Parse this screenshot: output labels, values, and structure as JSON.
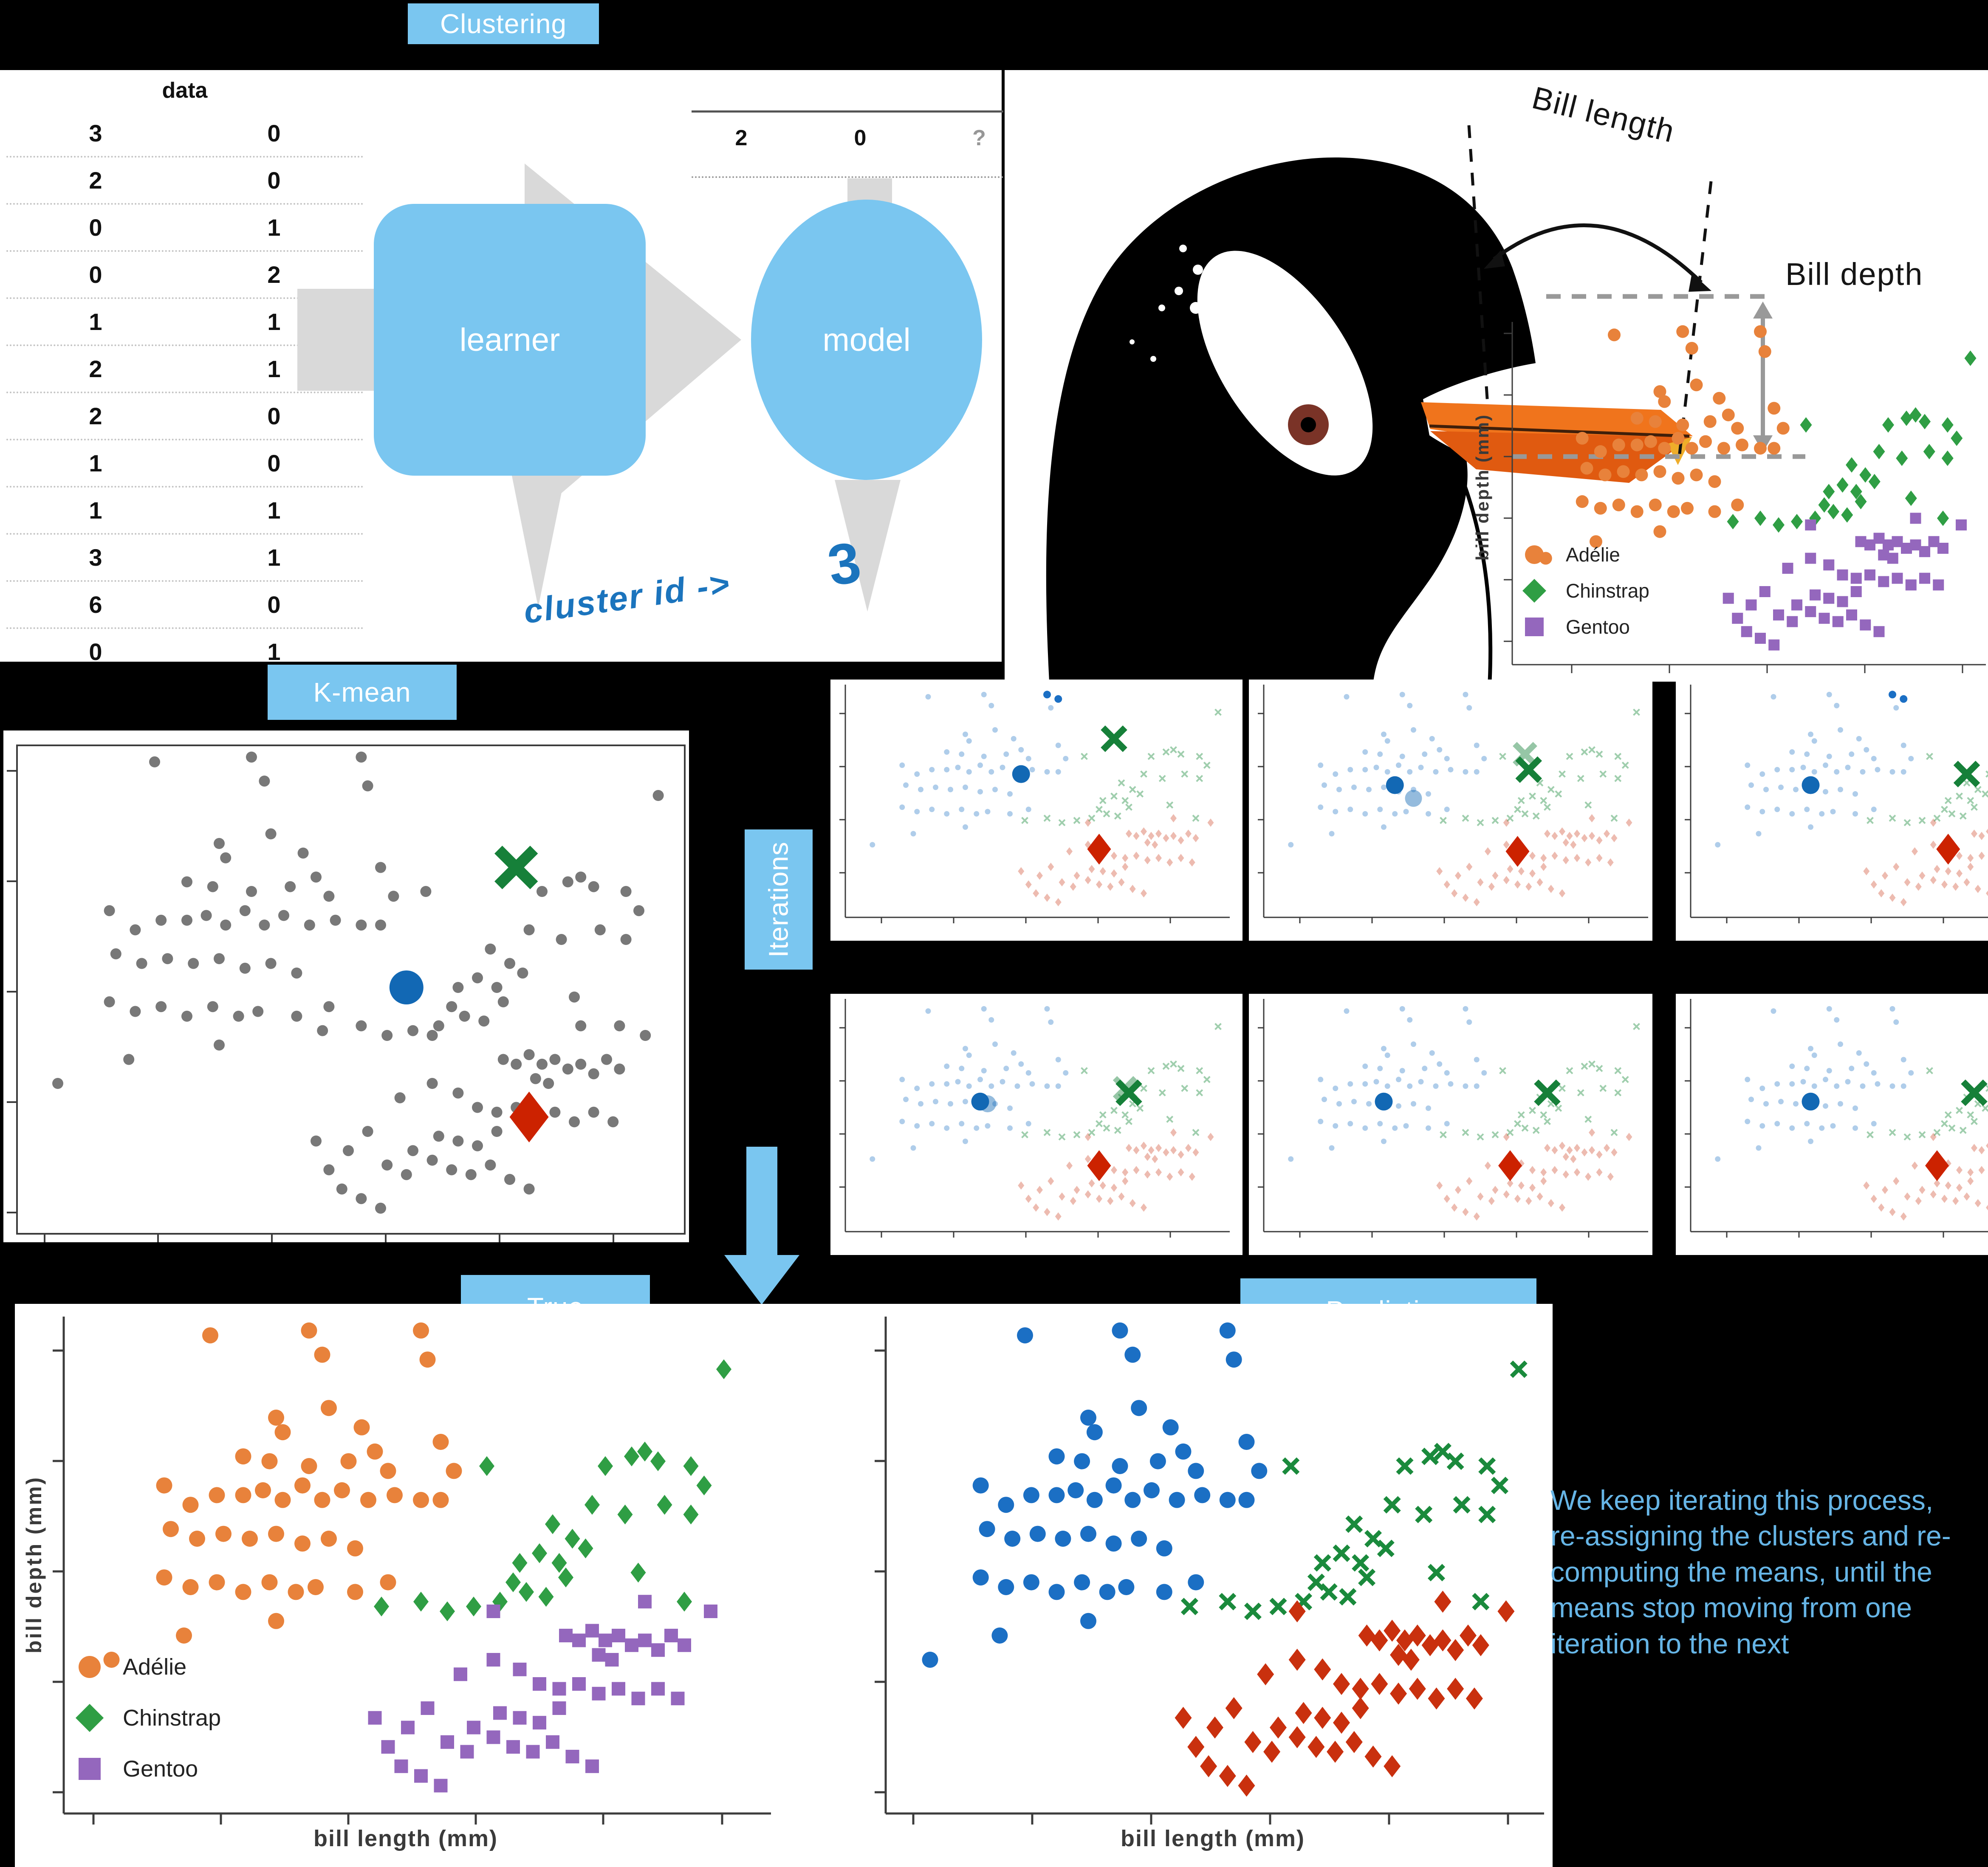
{
  "banners": {
    "clustering": "Clustering",
    "kmean": "K-mean",
    "iterations": "Iterations",
    "true_label": "True",
    "prediction": "Prediction"
  },
  "flow": {
    "table_header": "data",
    "table_rows": [
      [
        "3",
        "0"
      ],
      [
        "2",
        "0"
      ],
      [
        "0",
        "1"
      ],
      [
        "0",
        "2"
      ],
      [
        "1",
        "1"
      ],
      [
        "2",
        "1"
      ],
      [
        "2",
        "0"
      ],
      [
        "1",
        "0"
      ],
      [
        "1",
        "1"
      ],
      [
        "3",
        "1"
      ],
      [
        "6",
        "0"
      ],
      [
        "0",
        "1"
      ]
    ],
    "query_row": [
      "2",
      "0",
      "?"
    ],
    "learner_label": "learner",
    "model_label": "model",
    "annotation_text": "cluster id ->",
    "annotation_value": "3"
  },
  "penguin": {
    "bill_length": "Bill length",
    "bill_depth": "Bill depth"
  },
  "axes": {
    "x_label": "bill length (mm)",
    "y_label": "bill depth (mm)"
  },
  "legend": {
    "items": [
      {
        "label": "Adélie",
        "marker": "orange-circle"
      },
      {
        "label": "Chinstrap",
        "marker": "green-diamond"
      },
      {
        "label": "Gentoo",
        "marker": "purple-square"
      }
    ]
  },
  "note": {
    "text": "We keep iterating this process, re-assigning the clusters and re-computing the means, until the means stop moving from one iteration to the next"
  },
  "colors": {
    "page_bg": "#000000",
    "panel_bg": "#ffffff",
    "banner_blue": "#7ac6f0",
    "node_blue": "#7ac6f0",
    "arrow_gray": "#d9d9d9",
    "handwriting_blue": "#1b74bd",
    "note_blue": "#66b5e6",
    "adelie_orange": "#e8823b",
    "chinstrap_green": "#2f9e44",
    "gentoo_purple": "#9467bd",
    "cluster_blue": "#1b6fc4",
    "cluster_green": "#1a8a3c",
    "cluster_red": "#c9300e",
    "centroid_blue": "#1268b4",
    "centroid_green": "#168039",
    "centroid_red": "#cc2200",
    "gray_point": "#525252",
    "bill_orange": "#f0741c",
    "bill_orange_dark": "#e05a10"
  },
  "chart_data": {
    "type": "scatter",
    "note": "All plots share the same penguin bill dataset; coordinates are normalized 0-100 (x = bill length, y = bill depth) because no numeric tick labels are visible in the source image.",
    "species_points": {
      "adelie": [
        [
          20,
          97
        ],
        [
          35,
          98
        ],
        [
          37,
          93
        ],
        [
          52,
          98
        ],
        [
          53,
          92
        ],
        [
          38,
          82
        ],
        [
          30,
          80
        ],
        [
          31,
          77
        ],
        [
          43,
          78
        ],
        [
          25,
          72
        ],
        [
          29,
          71
        ],
        [
          35,
          70
        ],
        [
          41,
          71
        ],
        [
          45,
          73
        ],
        [
          47,
          69
        ],
        [
          55,
          75
        ],
        [
          57,
          69
        ],
        [
          13,
          66
        ],
        [
          17,
          62
        ],
        [
          21,
          64
        ],
        [
          25,
          64
        ],
        [
          28,
          65
        ],
        [
          31,
          63
        ],
        [
          34,
          66
        ],
        [
          37,
          63
        ],
        [
          40,
          65
        ],
        [
          44,
          63
        ],
        [
          48,
          64
        ],
        [
          52,
          63
        ],
        [
          14,
          57
        ],
        [
          18,
          55
        ],
        [
          22,
          56
        ],
        [
          26,
          55
        ],
        [
          30,
          56
        ],
        [
          34,
          54
        ],
        [
          38,
          55
        ],
        [
          42,
          53
        ],
        [
          13,
          47
        ],
        [
          17,
          45
        ],
        [
          21,
          46
        ],
        [
          25,
          44
        ],
        [
          29,
          46
        ],
        [
          33,
          44
        ],
        [
          42,
          44
        ],
        [
          47,
          46
        ],
        [
          36,
          45
        ],
        [
          55,
          63
        ],
        [
          5,
          30
        ],
        [
          16,
          35
        ],
        [
          30,
          38
        ]
      ],
      "chinstrap": [
        [
          98,
          90
        ],
        [
          62,
          70
        ],
        [
          80,
          70
        ],
        [
          84,
          72
        ],
        [
          86,
          73
        ],
        [
          88,
          71
        ],
        [
          93,
          70
        ],
        [
          95,
          66
        ],
        [
          78,
          62
        ],
        [
          83,
          60
        ],
        [
          89,
          62
        ],
        [
          93,
          60
        ],
        [
          72,
          58
        ],
        [
          75,
          55
        ],
        [
          77,
          53
        ],
        [
          70,
          52
        ],
        [
          67,
          50
        ],
        [
          73,
          50
        ],
        [
          74,
          47
        ],
        [
          66,
          46
        ],
        [
          68,
          44
        ],
        [
          71,
          43
        ],
        [
          64,
          42
        ],
        [
          85,
          48
        ],
        [
          92,
          42
        ],
        [
          60,
          41
        ],
        [
          52,
          42
        ],
        [
          56,
          40
        ],
        [
          46,
          41
        ]
      ],
      "gentoo": [
        [
          63,
          40
        ],
        [
          86,
          42
        ],
        [
          96,
          40
        ],
        [
          74,
          35
        ],
        [
          76,
          34
        ],
        [
          78,
          36
        ],
        [
          80,
          34
        ],
        [
          82,
          35
        ],
        [
          84,
          33
        ],
        [
          86,
          34
        ],
        [
          88,
          32
        ],
        [
          79,
          31
        ],
        [
          81,
          30
        ],
        [
          90,
          35
        ],
        [
          92,
          33
        ],
        [
          63,
          30
        ],
        [
          67,
          28
        ],
        [
          58,
          27
        ],
        [
          70,
          25
        ],
        [
          73,
          24
        ],
        [
          76,
          25
        ],
        [
          79,
          23
        ],
        [
          82,
          24
        ],
        [
          85,
          22
        ],
        [
          88,
          24
        ],
        [
          91,
          22
        ],
        [
          73,
          20
        ],
        [
          64,
          19
        ],
        [
          67,
          18
        ],
        [
          70,
          17
        ],
        [
          60,
          16
        ],
        [
          63,
          14
        ],
        [
          56,
          13
        ],
        [
          59,
          11
        ],
        [
          66,
          12
        ],
        [
          69,
          11
        ],
        [
          72,
          13
        ],
        [
          53,
          20
        ],
        [
          50,
          16
        ],
        [
          45,
          18
        ],
        [
          47,
          12
        ],
        [
          49,
          8
        ],
        [
          52,
          6
        ],
        [
          55,
          4
        ],
        [
          75,
          10
        ],
        [
          78,
          8
        ]
      ]
    },
    "charts": [
      {
        "id": "penguin-scatter",
        "type": "scatter",
        "ylabel": "bill depth (mm)",
        "xlabel": "",
        "legend": [
          "Adélie",
          "Chinstrap",
          "Gentoo"
        ],
        "legend_position": "lower left",
        "series": "species_points colored by species (Adélie orange circles, Chinstrap green diamonds, Gentoo purple squares)"
      },
      {
        "id": "kmean-initial",
        "type": "scatter",
        "points": "all species_points drawn as unlabeled gray dots",
        "centroids": {
          "blue": [
            59,
            50
          ],
          "green": [
            76,
            75
          ],
          "red": [
            78,
            23
          ]
        }
      },
      {
        "id": "iterations",
        "type": "scatter-grid",
        "rows": 2,
        "cols": 3,
        "points": "species_points faded and colored by assigned cluster (blue circles / green x / red diamonds)",
        "subplots": [
          {
            "blue": [
              45,
              62
            ],
            "green": [
              70,
              78
            ],
            "red": [
              66,
              28
            ],
            "solid_blue": [
              [
                52,
                98
              ],
              [
                55,
                96
              ]
            ]
          },
          {
            "blue": [
              33,
              57
            ],
            "blue_prev": [
              38,
              51
            ],
            "green": [
              69,
              64
            ],
            "green_prev": [
              68,
              71
            ],
            "red": [
              66,
              27
            ]
          },
          {
            "blue": [
              30,
              57
            ],
            "green": [
              72,
              62
            ],
            "red": [
              67,
              28
            ],
            "solid_blue": [
              [
                52,
                98
              ],
              [
                55,
                96
              ]
            ]
          },
          {
            "blue": [
              34,
              56
            ],
            "blue_prev": [
              36,
              55
            ],
            "green": [
              74,
              60
            ],
            "green_prev": [
              73,
              62
            ],
            "red": [
              66,
              27
            ]
          },
          {
            "blue": [
              30,
              56
            ],
            "green": [
              74,
              60
            ],
            "red": [
              64,
              27
            ]
          },
          {
            "blue": [
              30,
              56
            ],
            "green": [
              74,
              60
            ],
            "red": [
              64,
              27
            ]
          }
        ]
      },
      {
        "id": "true",
        "type": "scatter",
        "xlabel": "bill length (mm)",
        "ylabel": "bill depth (mm)",
        "legend": [
          "Adélie",
          "Chinstrap",
          "Gentoo"
        ],
        "legend_position": "lower left",
        "series": "species_points colored by true species"
      },
      {
        "id": "prediction",
        "type": "scatter",
        "xlabel": "bill length (mm)",
        "series": "species_points colored by predicted cluster (blue circles, green x, red diamonds)"
      }
    ]
  }
}
